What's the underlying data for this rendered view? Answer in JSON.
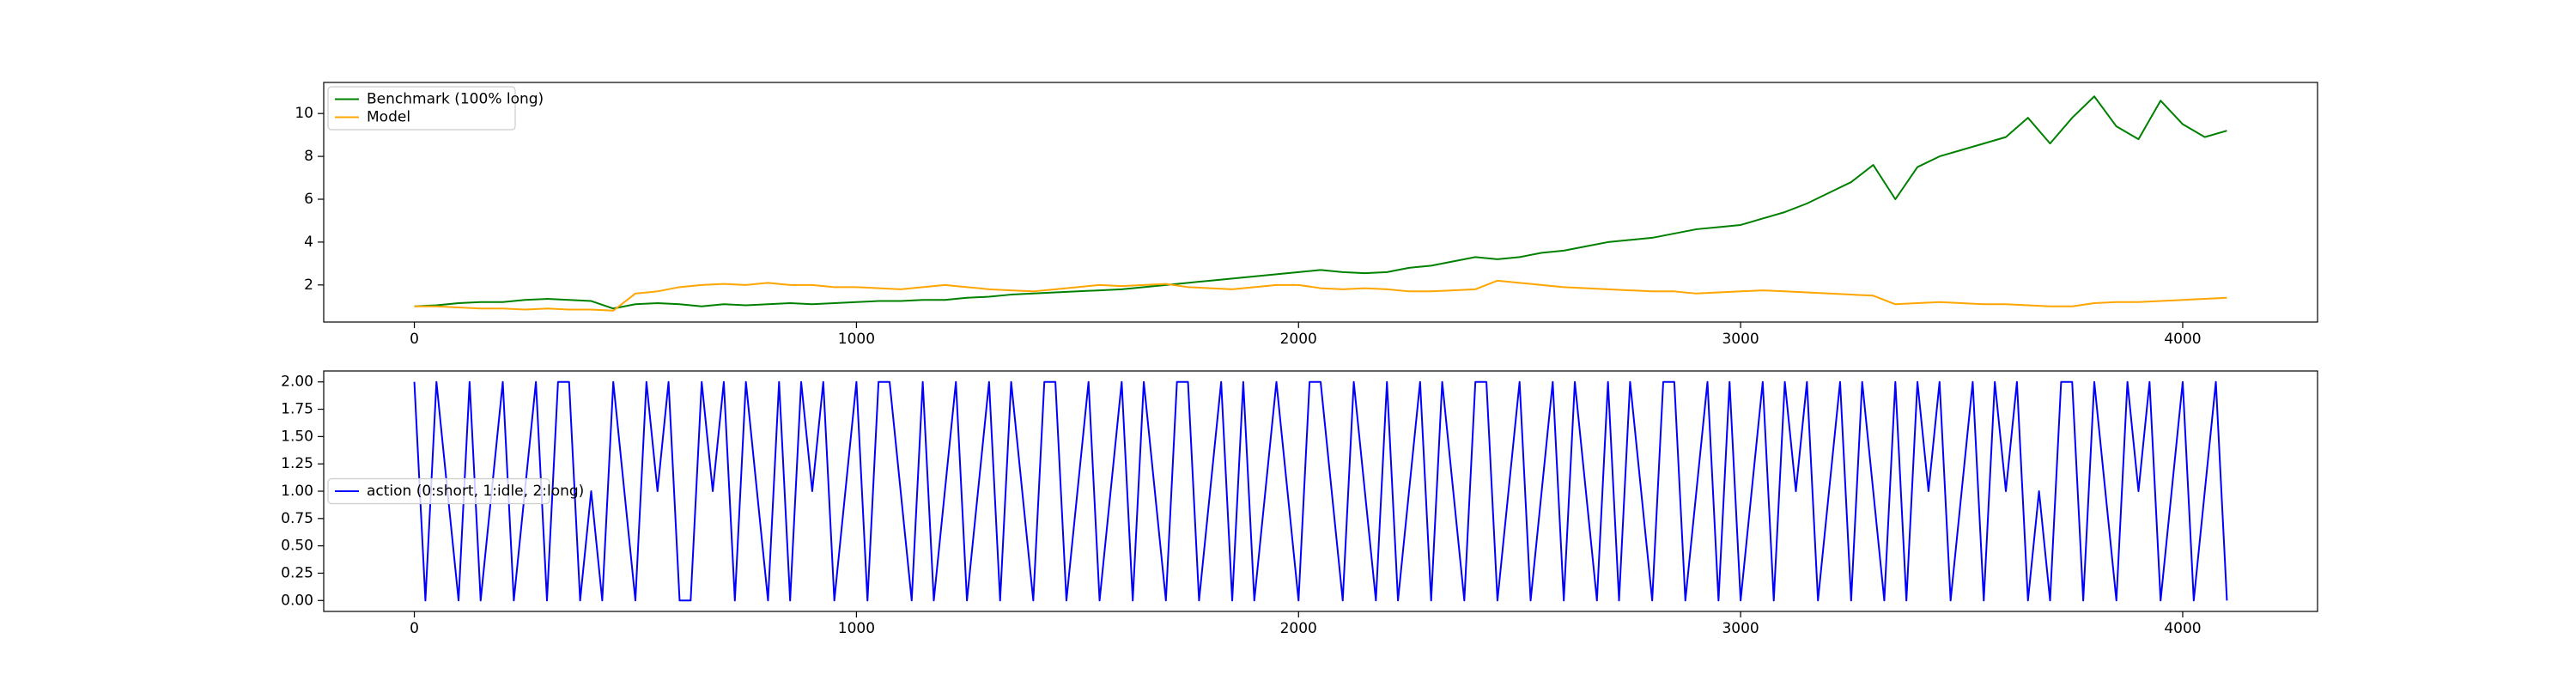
{
  "chart_data": [
    {
      "type": "line",
      "x": [
        0,
        50,
        100,
        150,
        200,
        250,
        300,
        350,
        400,
        450,
        500,
        550,
        600,
        650,
        700,
        750,
        800,
        850,
        900,
        950,
        1000,
        1050,
        1100,
        1150,
        1200,
        1250,
        1300,
        1350,
        1400,
        1450,
        1500,
        1550,
        1600,
        1650,
        1700,
        1750,
        1800,
        1850,
        1900,
        1950,
        2000,
        2050,
        2100,
        2150,
        2200,
        2250,
        2300,
        2350,
        2400,
        2450,
        2500,
        2550,
        2600,
        2650,
        2700,
        2750,
        2800,
        2850,
        2900,
        2950,
        3000,
        3050,
        3100,
        3150,
        3200,
        3250,
        3300,
        3350,
        3400,
        3450,
        3500,
        3550,
        3600,
        3650,
        3700,
        3750,
        3800,
        3850,
        3900,
        3950,
        4000,
        4050,
        4100
      ],
      "series": [
        {
          "name": "Benchmark (100% long)",
          "color": "#008000",
          "values": [
            1.0,
            1.05,
            1.15,
            1.2,
            1.2,
            1.3,
            1.35,
            1.3,
            1.25,
            0.9,
            1.1,
            1.15,
            1.1,
            1.0,
            1.1,
            1.05,
            1.1,
            1.15,
            1.1,
            1.15,
            1.2,
            1.25,
            1.25,
            1.3,
            1.3,
            1.4,
            1.45,
            1.55,
            1.6,
            1.65,
            1.7,
            1.75,
            1.8,
            1.9,
            2.0,
            2.1,
            2.2,
            2.3,
            2.4,
            2.5,
            2.6,
            2.7,
            2.6,
            2.55,
            2.6,
            2.8,
            2.9,
            3.1,
            3.3,
            3.2,
            3.3,
            3.5,
            3.6,
            3.8,
            4.0,
            4.1,
            4.2,
            4.4,
            4.6,
            4.7,
            4.8,
            5.1,
            5.4,
            5.8,
            6.3,
            6.8,
            7.6,
            6.0,
            7.5,
            8.0,
            8.3,
            8.6,
            8.9,
            9.8,
            8.6,
            9.8,
            10.8,
            9.4,
            8.8,
            10.6,
            9.5,
            8.9,
            9.2
          ]
        },
        {
          "name": "Model",
          "color": "#ffa500",
          "values": [
            1.0,
            1.0,
            0.95,
            0.9,
            0.9,
            0.85,
            0.9,
            0.85,
            0.85,
            0.8,
            1.6,
            1.7,
            1.9,
            2.0,
            2.05,
            2.0,
            2.1,
            2.0,
            2.0,
            1.9,
            1.9,
            1.85,
            1.8,
            1.9,
            2.0,
            1.9,
            1.8,
            1.75,
            1.7,
            1.8,
            1.9,
            2.0,
            1.95,
            2.0,
            2.05,
            1.9,
            1.85,
            1.8,
            1.9,
            2.0,
            2.0,
            1.85,
            1.8,
            1.85,
            1.8,
            1.7,
            1.7,
            1.75,
            1.8,
            2.2,
            2.1,
            2.0,
            1.9,
            1.85,
            1.8,
            1.75,
            1.7,
            1.7,
            1.6,
            1.65,
            1.7,
            1.75,
            1.7,
            1.65,
            1.6,
            1.55,
            1.5,
            1.1,
            1.15,
            1.2,
            1.15,
            1.1,
            1.1,
            1.05,
            1.0,
            1.0,
            1.15,
            1.2,
            1.2,
            1.25,
            1.3,
            1.35,
            1.4
          ]
        }
      ],
      "xlim": [
        -205,
        4305
      ],
      "ylim": [
        0.27,
        11.45
      ],
      "xticks": [
        0,
        1000,
        2000,
        3000,
        4000
      ],
      "yticks": [
        2,
        4,
        6,
        8,
        10
      ],
      "legend": "upper left"
    },
    {
      "type": "line",
      "x": [
        0,
        25,
        50,
        75,
        100,
        125,
        150,
        175,
        200,
        225,
        250,
        275,
        300,
        325,
        350,
        375,
        400,
        425,
        450,
        475,
        500,
        525,
        550,
        575,
        600,
        625,
        650,
        675,
        700,
        725,
        750,
        775,
        800,
        825,
        850,
        875,
        900,
        925,
        950,
        975,
        1000,
        1025,
        1050,
        1075,
        1100,
        1125,
        1150,
        1175,
        1200,
        1225,
        1250,
        1275,
        1300,
        1325,
        1350,
        1375,
        1400,
        1425,
        1450,
        1475,
        1500,
        1525,
        1550,
        1575,
        1600,
        1625,
        1650,
        1675,
        1700,
        1725,
        1750,
        1775,
        1800,
        1825,
        1850,
        1875,
        1900,
        1925,
        1950,
        1975,
        2000,
        2025,
        2050,
        2075,
        2100,
        2125,
        2150,
        2175,
        2200,
        2225,
        2250,
        2275,
        2300,
        2325,
        2350,
        2375,
        2400,
        2425,
        2450,
        2475,
        2500,
        2525,
        2550,
        2575,
        2600,
        2625,
        2650,
        2675,
        2700,
        2725,
        2750,
        2775,
        2800,
        2825,
        2850,
        2875,
        2900,
        2925,
        2950,
        2975,
        3000,
        3025,
        3050,
        3075,
        3100,
        3125,
        3150,
        3175,
        3200,
        3225,
        3250,
        3275,
        3300,
        3325,
        3350,
        3375,
        3400,
        3425,
        3450,
        3475,
        3500,
        3525,
        3550,
        3575,
        3600,
        3625,
        3650,
        3675,
        3700,
        3725,
        3750,
        3775,
        3800,
        3825,
        3850,
        3875,
        3900,
        3925,
        3950,
        3975,
        4000,
        4025,
        4050,
        4075,
        4100
      ],
      "series": [
        {
          "name": "action (0:short, 1:idle, 2:long)",
          "color": "#0000ff",
          "values": [
            2,
            0,
            2,
            1,
            0,
            2,
            0,
            1,
            2,
            0,
            1,
            2,
            0,
            2,
            2,
            0,
            1,
            0,
            2,
            1,
            0,
            2,
            1,
            2,
            0,
            0,
            2,
            1,
            2,
            0,
            2,
            1,
            0,
            2,
            0,
            2,
            1,
            2,
            0,
            1,
            2,
            0,
            2,
            2,
            1,
            0,
            2,
            0,
            1,
            2,
            0,
            1,
            2,
            0,
            2,
            1,
            0,
            2,
            2,
            0,
            1,
            2,
            0,
            1,
            2,
            0,
            2,
            1,
            0,
            2,
            2,
            0,
            1,
            2,
            0,
            2,
            0,
            1,
            2,
            1,
            0,
            2,
            2,
            1,
            0,
            2,
            1,
            0,
            2,
            0,
            1,
            2,
            0,
            2,
            1,
            0,
            2,
            2,
            0,
            1,
            2,
            0,
            1,
            2,
            0,
            2,
            1,
            0,
            2,
            0,
            2,
            1,
            0,
            2,
            2,
            0,
            1,
            2,
            0,
            2,
            0,
            1,
            2,
            0,
            2,
            1,
            2,
            0,
            1,
            2,
            0,
            2,
            1,
            0,
            2,
            0,
            2,
            1,
            2,
            0,
            1,
            2,
            0,
            2,
            1,
            2,
            0,
            1,
            0,
            2,
            2,
            0,
            2,
            1,
            0,
            2,
            1,
            2,
            0,
            1,
            2,
            0,
            1,
            2,
            0
          ]
        }
      ],
      "xlim": [
        -205,
        4305
      ],
      "ylim": [
        -0.1,
        2.1
      ],
      "xticks": [
        0,
        1000,
        2000,
        3000,
        4000
      ],
      "yticks": [
        {
          "value": 0,
          "label": "0.00"
        },
        {
          "value": 0.25,
          "label": "0.25"
        },
        {
          "value": 0.5,
          "label": "0.50"
        },
        {
          "value": 0.75,
          "label": "0.75"
        },
        {
          "value": 1,
          "label": "1.00"
        },
        {
          "value": 1.25,
          "label": "1.25"
        },
        {
          "value": 1.5,
          "label": "1.50"
        },
        {
          "value": 1.75,
          "label": "1.75"
        },
        {
          "value": 2,
          "label": "2.00"
        }
      ],
      "legend": "center left"
    }
  ]
}
